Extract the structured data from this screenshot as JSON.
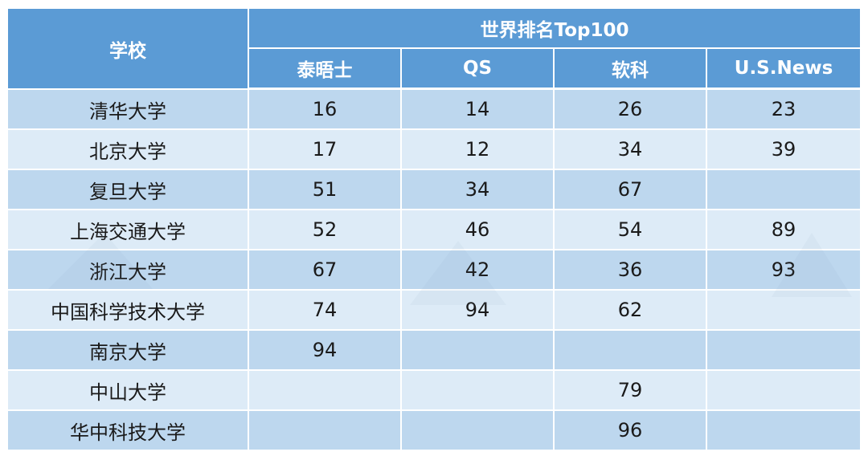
{
  "chart_data": {
    "type": "table",
    "header": {
      "school_label": "学校",
      "group_label": "世界排名Top100",
      "columns": [
        "泰晤士",
        "QS",
        "软科",
        "U.S.News"
      ]
    },
    "rows": [
      {
        "school": "清华大学",
        "values": [
          "16",
          "14",
          "26",
          "23"
        ]
      },
      {
        "school": "北京大学",
        "values": [
          "17",
          "12",
          "34",
          "39"
        ]
      },
      {
        "school": "复旦大学",
        "values": [
          "51",
          "34",
          "67",
          ""
        ]
      },
      {
        "school": "上海交通大学",
        "values": [
          "52",
          "46",
          "54",
          "89"
        ]
      },
      {
        "school": "浙江大学",
        "values": [
          "67",
          "42",
          "36",
          "93"
        ]
      },
      {
        "school": "中国科学技术大学",
        "values": [
          "74",
          "94",
          "62",
          ""
        ]
      },
      {
        "school": "南京大学",
        "values": [
          "94",
          "",
          "",
          ""
        ]
      },
      {
        "school": "中山大学",
        "values": [
          "",
          "",
          "79",
          ""
        ]
      },
      {
        "school": "华中科技大学",
        "values": [
          "",
          "",
          "96",
          ""
        ]
      }
    ]
  },
  "colors": {
    "header_bg": "#5b9bd5",
    "row_dark": "#bdd7ee",
    "row_light": "#ddebf7"
  }
}
